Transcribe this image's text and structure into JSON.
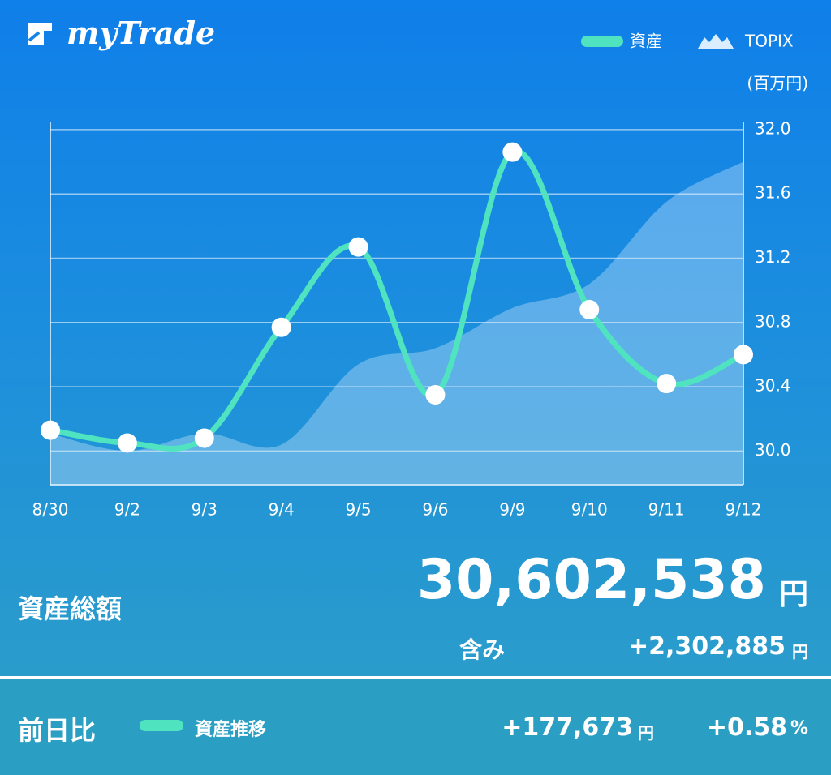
{
  "header": {
    "logo": "myTrade"
  },
  "chart_data": {
    "type": "line",
    "y_unit": "(百万円)",
    "categories": [
      "8/30",
      "9/2",
      "9/3",
      "9/4",
      "9/5",
      "9/6",
      "9/9",
      "9/10",
      "9/11",
      "9/12"
    ],
    "series": [
      {
        "name": "資産",
        "type": "line",
        "color": "#4fe3bf",
        "values": [
          30.13,
          30.05,
          30.08,
          30.77,
          31.27,
          30.35,
          31.86,
          30.88,
          30.42,
          30.6
        ]
      },
      {
        "name": "TOPIX",
        "type": "area",
        "color": "#dbeeff",
        "values": [
          30.11,
          30.0,
          30.11,
          30.04,
          30.54,
          30.64,
          30.89,
          31.04,
          31.55,
          31.8
        ]
      }
    ],
    "ylim": [
      29.79,
      32.05
    ],
    "yticks": [
      {
        "value": 30,
        "label": "30.0"
      },
      30.4,
      30.8,
      31.2,
      31.6,
      {
        "value": 32,
        "label": "32.0"
      }
    ],
    "grid": true,
    "y_axis_side": "right"
  },
  "summary": {
    "label": "資産総額",
    "total": "30,602,538",
    "total_unit": "円",
    "unrealized_label": "含み",
    "unrealized": "+2,302,885",
    "unrealized_unit": "円"
  },
  "daily": {
    "label": "前日比",
    "legend": "資産推移",
    "change": "+177,673",
    "change_unit": "円",
    "percent": "+0.58",
    "percent_unit": "%"
  }
}
